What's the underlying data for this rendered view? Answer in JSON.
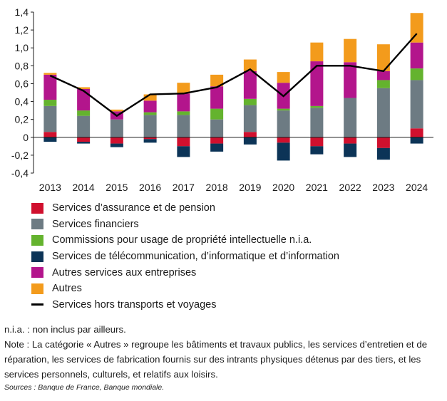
{
  "chart_data": {
    "type": "bar",
    "stacked": true,
    "categories": [
      "2013",
      "2014",
      "2015",
      "2016",
      "2017",
      "2018",
      "2019",
      "2020",
      "2021",
      "2022",
      "2023",
      "2024"
    ],
    "ylim": [
      -0.4,
      1.4
    ],
    "yticks": [
      -0.4,
      -0.2,
      0,
      0.2,
      0.4,
      0.6,
      0.8,
      1.0,
      1.2,
      1.4
    ],
    "ytick_labels": [
      "-0,4",
      "-0,2",
      "0",
      "0,2",
      "0,4",
      "0,6",
      "0,8",
      "1,0",
      "1,2",
      "1,4"
    ],
    "grid": false,
    "legend_position": "bottom",
    "series": [
      {
        "name": "Services d’assurance et de pension",
        "color": "#d0102e",
        "values": [
          0.06,
          -0.05,
          -0.07,
          -0.02,
          -0.1,
          -0.07,
          0.06,
          -0.06,
          -0.1,
          -0.07,
          -0.12,
          0.1
        ]
      },
      {
        "name": "Services financiers",
        "color": "#6d7b83",
        "values": [
          0.29,
          0.24,
          0.2,
          0.25,
          0.25,
          0.2,
          0.3,
          0.3,
          0.33,
          0.44,
          0.55,
          0.54
        ]
      },
      {
        "name": "Commissions pour usage de propriété intellectuelle n.i.a.",
        "color": "#64b32e",
        "values": [
          0.07,
          0.06,
          0.0,
          0.03,
          0.04,
          0.12,
          0.07,
          0.02,
          0.02,
          0.0,
          0.09,
          0.13
        ]
      },
      {
        "name": "Services de télécommunication, d’informatique et d’information",
        "color": "#0c3457",
        "values": [
          -0.05,
          -0.02,
          -0.04,
          -0.04,
          -0.12,
          -0.09,
          -0.08,
          -0.2,
          -0.09,
          -0.15,
          -0.13,
          -0.07
        ]
      },
      {
        "name": "Autres services aux entreprises",
        "color": "#b3158c",
        "values": [
          0.28,
          0.24,
          0.09,
          0.13,
          0.2,
          0.25,
          0.31,
          0.29,
          0.5,
          0.4,
          0.1,
          0.29
        ]
      },
      {
        "name": "Autres",
        "color": "#f39b1c",
        "values": [
          0.02,
          0.02,
          0.02,
          0.07,
          0.12,
          0.13,
          0.13,
          0.12,
          0.21,
          0.26,
          0.3,
          0.33
        ]
      }
    ],
    "line": {
      "name": "Services hors transports et voyages",
      "color": "#000000",
      "values": [
        0.69,
        0.52,
        0.24,
        0.48,
        0.49,
        0.56,
        0.76,
        0.46,
        0.8,
        0.8,
        0.74,
        1.16
      ]
    }
  },
  "notes": {
    "nia": "n.i.a. : non inclus par ailleurs.",
    "note": "Note : La catégorie « Autres » regroupe les bâtiments et travaux publics, les services d’entretien et de réparation, les services de fabrication fournis sur des intrants physiques détenus par des tiers, et les services personnels, culturels, et relatifs aux loisirs.",
    "sources": "Sources : Banque de France, Banque mondiale."
  }
}
